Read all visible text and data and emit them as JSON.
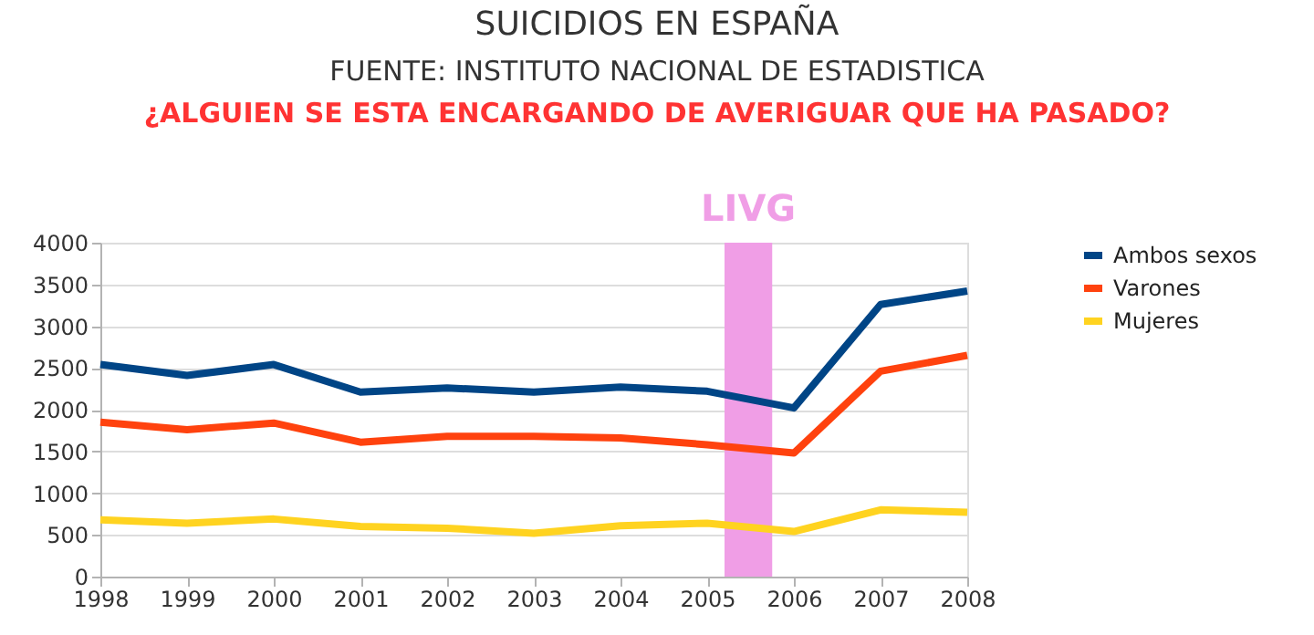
{
  "chart_data": {
    "type": "line",
    "title": "SUICIDIOS EN ESPAÑA",
    "subtitle": "FUENTE: INSTITUTO NACIONAL DE ESTADISTICA",
    "annotations": [
      "¿ALGUIEN SE ESTA ENCARGANDO DE AVERIGUAR QUE HA PASADO?"
    ],
    "x": [
      1998,
      1999,
      2000,
      2001,
      2002,
      2003,
      2004,
      2005,
      2006,
      2007,
      2008
    ],
    "series": [
      {
        "name": "Ambos sexos",
        "color": "#004586",
        "values": [
          2540,
          2410,
          2540,
          2210,
          2260,
          2210,
          2270,
          2220,
          2020,
          3260,
          3420
        ]
      },
      {
        "name": "Varones",
        "color": "#ff420e",
        "values": [
          1850,
          1760,
          1840,
          1610,
          1680,
          1680,
          1660,
          1580,
          1480,
          2460,
          2650
        ]
      },
      {
        "name": "Mujeres",
        "color": "#ffd320",
        "values": [
          680,
          640,
          690,
          600,
          580,
          520,
          610,
          640,
          540,
          800,
          770
        ]
      }
    ],
    "bands": [
      {
        "axis": "x",
        "from": 2005.2,
        "to": 2005.75,
        "label": "LIVG",
        "color": "#f09ee6"
      }
    ],
    "xlim": [
      1998,
      2008
    ],
    "xticks": [
      1998,
      1999,
      2000,
      2001,
      2002,
      2003,
      2004,
      2005,
      2006,
      2007,
      2008
    ],
    "ylim": [
      0,
      4000
    ],
    "yticks": [
      0,
      500,
      1000,
      1500,
      2000,
      2500,
      3000,
      3500,
      4000
    ],
    "grid": "y",
    "legend": "right",
    "line_style": "solid",
    "marker": "none"
  }
}
